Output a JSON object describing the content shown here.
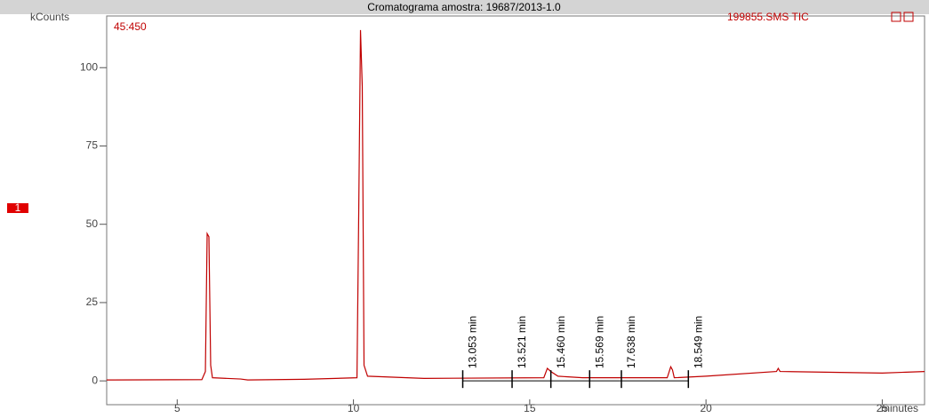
{
  "chart_data": {
    "type": "line",
    "title": "Cromatograma amostra: 19687/2013-1.0",
    "y_label": "kCounts",
    "x_label": "minutes",
    "ion_label": "45:450",
    "trace_label": "199855.SMS TIC",
    "trace_index": "1",
    "x": [
      3.0,
      5.7,
      5.8,
      5.85,
      5.9,
      5.95,
      6.0,
      6.8,
      7.0,
      8.6,
      10.1,
      10.15,
      10.2,
      10.25,
      10.3,
      10.4,
      12.0,
      15.4,
      15.5,
      15.6,
      15.8,
      16.5,
      18.9,
      19.0,
      19.05,
      19.1,
      20.0,
      22.0,
      22.05,
      22.1,
      25.0,
      26.2
    ],
    "series": [
      {
        "name": "199855.SMS TIC",
        "color": "#c00000",
        "values": [
          0.3,
          0.4,
          3,
          47,
          46,
          5,
          1,
          0.6,
          0.3,
          0.5,
          1,
          54,
          112,
          94,
          5,
          1.5,
          0.8,
          1,
          4,
          3,
          1.5,
          1,
          1,
          4.5,
          3.5,
          1,
          1.5,
          3,
          4,
          3,
          2.5,
          3
        ]
      }
    ],
    "annotations": [
      {
        "text": "13.053 min",
        "x": 13.1
      },
      {
        "text": "13.521 min",
        "x": 14.5
      },
      {
        "text": "15.460 min",
        "x": 15.6
      },
      {
        "text": "15.569 min",
        "x": 16.7
      },
      {
        "text": "17.638 min",
        "x": 17.6
      },
      {
        "text": "18.549 min",
        "x": 19.5
      }
    ],
    "xlim": [
      3,
      26.2
    ],
    "ylim": [
      -7.6,
      116.5
    ],
    "xticks": [
      5,
      10,
      15,
      20,
      25
    ],
    "yticks": [
      0,
      25,
      50,
      75,
      100
    ]
  }
}
